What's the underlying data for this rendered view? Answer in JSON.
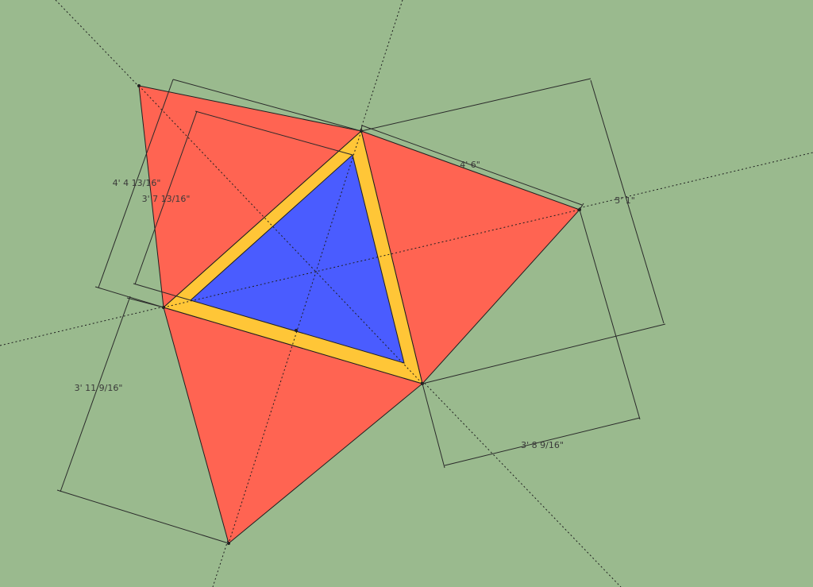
{
  "dimensions": {
    "d1": "4' 6\"",
    "d2": "5' 1\"",
    "d3": "3' 8 9/16\"",
    "d4": "3' 11 9/16\"",
    "d5": "4' 4 13/16\"",
    "d6": "3' 7 13/16\""
  },
  "colors": {
    "background": "#9aba8e",
    "outer_faces": "#ff6452",
    "frame": "#ffc637",
    "inner_face": "#4a5cff",
    "lines": "#1f1f1f"
  }
}
